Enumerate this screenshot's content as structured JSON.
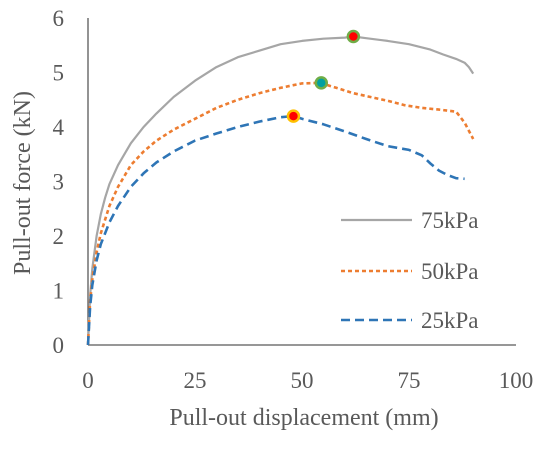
{
  "chart_data": {
    "type": "line",
    "title": "",
    "xlabel": "Pull-out displacement (mm)",
    "ylabel": "Pull-out force (kN)",
    "xlim": [
      0,
      100
    ],
    "ylim": [
      0,
      6
    ],
    "x_ticks": [
      "0",
      "25",
      "50",
      "75",
      "100"
    ],
    "y_ticks": [
      "0",
      "1",
      "2",
      "3",
      "4",
      "5",
      "6"
    ],
    "grid": false,
    "legend_position": "bottom-right",
    "series": [
      {
        "name": "75kPa",
        "color": "#a6a6a6",
        "line_style": "solid",
        "x": [
          0,
          0.5,
          1,
          2,
          3,
          4,
          5,
          7,
          10,
          13,
          16,
          20,
          25,
          30,
          35,
          40,
          45,
          50,
          55,
          60,
          62,
          65,
          70,
          75,
          80,
          83,
          86,
          88,
          89,
          90
        ],
        "y": [
          0,
          0.9,
          1.4,
          2.0,
          2.4,
          2.7,
          2.95,
          3.3,
          3.7,
          4.0,
          4.25,
          4.55,
          4.85,
          5.1,
          5.28,
          5.4,
          5.52,
          5.58,
          5.62,
          5.64,
          5.66,
          5.63,
          5.58,
          5.52,
          5.42,
          5.33,
          5.25,
          5.18,
          5.1,
          4.98
        ]
      },
      {
        "name": "50kPa",
        "color": "#ed7d31",
        "line_style": "dotted",
        "x": [
          0,
          0.5,
          1,
          2,
          3,
          4,
          5,
          7,
          10,
          13,
          16,
          20,
          25,
          30,
          35,
          40,
          45,
          50,
          54,
          55,
          58,
          62,
          66,
          70,
          74,
          78,
          82,
          86,
          88,
          90
        ],
        "y": [
          0,
          0.8,
          1.2,
          1.7,
          2.05,
          2.3,
          2.55,
          2.9,
          3.3,
          3.55,
          3.75,
          3.95,
          4.15,
          4.35,
          4.5,
          4.62,
          4.72,
          4.8,
          4.81,
          4.79,
          4.72,
          4.62,
          4.55,
          4.48,
          4.4,
          4.35,
          4.32,
          4.28,
          4.08,
          3.78
        ]
      },
      {
        "name": "25kPa",
        "color": "#2e75b6",
        "line_style": "dashed",
        "x": [
          0,
          0.5,
          1,
          2,
          3,
          4,
          5,
          7,
          10,
          13,
          16,
          20,
          25,
          30,
          35,
          40,
          45,
          48,
          50,
          55,
          60,
          65,
          70,
          75,
          78,
          80,
          82,
          84,
          86,
          88
        ],
        "y": [
          0,
          0.7,
          1.1,
          1.55,
          1.85,
          2.05,
          2.25,
          2.55,
          2.9,
          3.15,
          3.35,
          3.55,
          3.75,
          3.88,
          4.0,
          4.1,
          4.18,
          4.2,
          4.15,
          4.05,
          3.92,
          3.78,
          3.65,
          3.58,
          3.48,
          3.33,
          3.2,
          3.12,
          3.06,
          3.05
        ]
      }
    ],
    "peak_markers": [
      {
        "series": "75kPa",
        "x": 62,
        "y": 5.66,
        "fill": "#ff0000",
        "ring": "#70ad47"
      },
      {
        "series": "50kPa",
        "x": 54.5,
        "y": 4.81,
        "fill": "#00a0a0",
        "ring": "#70ad47"
      },
      {
        "series": "25kPa",
        "x": 48,
        "y": 4.2,
        "fill": "#ff0000",
        "ring": "#ffc000"
      }
    ]
  }
}
